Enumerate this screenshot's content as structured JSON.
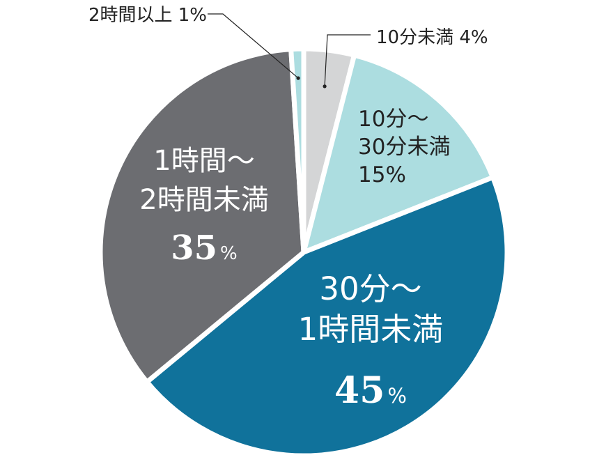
{
  "chart_data": {
    "type": "pie",
    "unit": "%",
    "slices": [
      {
        "category": "10分未満",
        "value": 4,
        "color": "#d4d5d6",
        "label_lines": [],
        "callout": "10分未満 4%"
      },
      {
        "category": "10分～30分未満",
        "value": 15,
        "color": "#acdde0",
        "label_lines": [
          "10分～",
          "30分未満"
        ],
        "value_text": "15%"
      },
      {
        "category": "30分～1時間未満",
        "value": 45,
        "color": "#10729b",
        "label_lines": [
          "30分～",
          "1時間未満"
        ],
        "value_num": "45",
        "value_unit": "%"
      },
      {
        "category": "1時間～2時間未満",
        "value": 35,
        "color": "#6c6d71",
        "label_lines": [
          "1時間～",
          "2時間未満"
        ],
        "value_num": "35",
        "value_unit": "%"
      },
      {
        "category": "2時間以上",
        "value": 1,
        "color": "#acdde0",
        "label_lines": [],
        "callout": "2時間以上 1%"
      }
    ]
  }
}
